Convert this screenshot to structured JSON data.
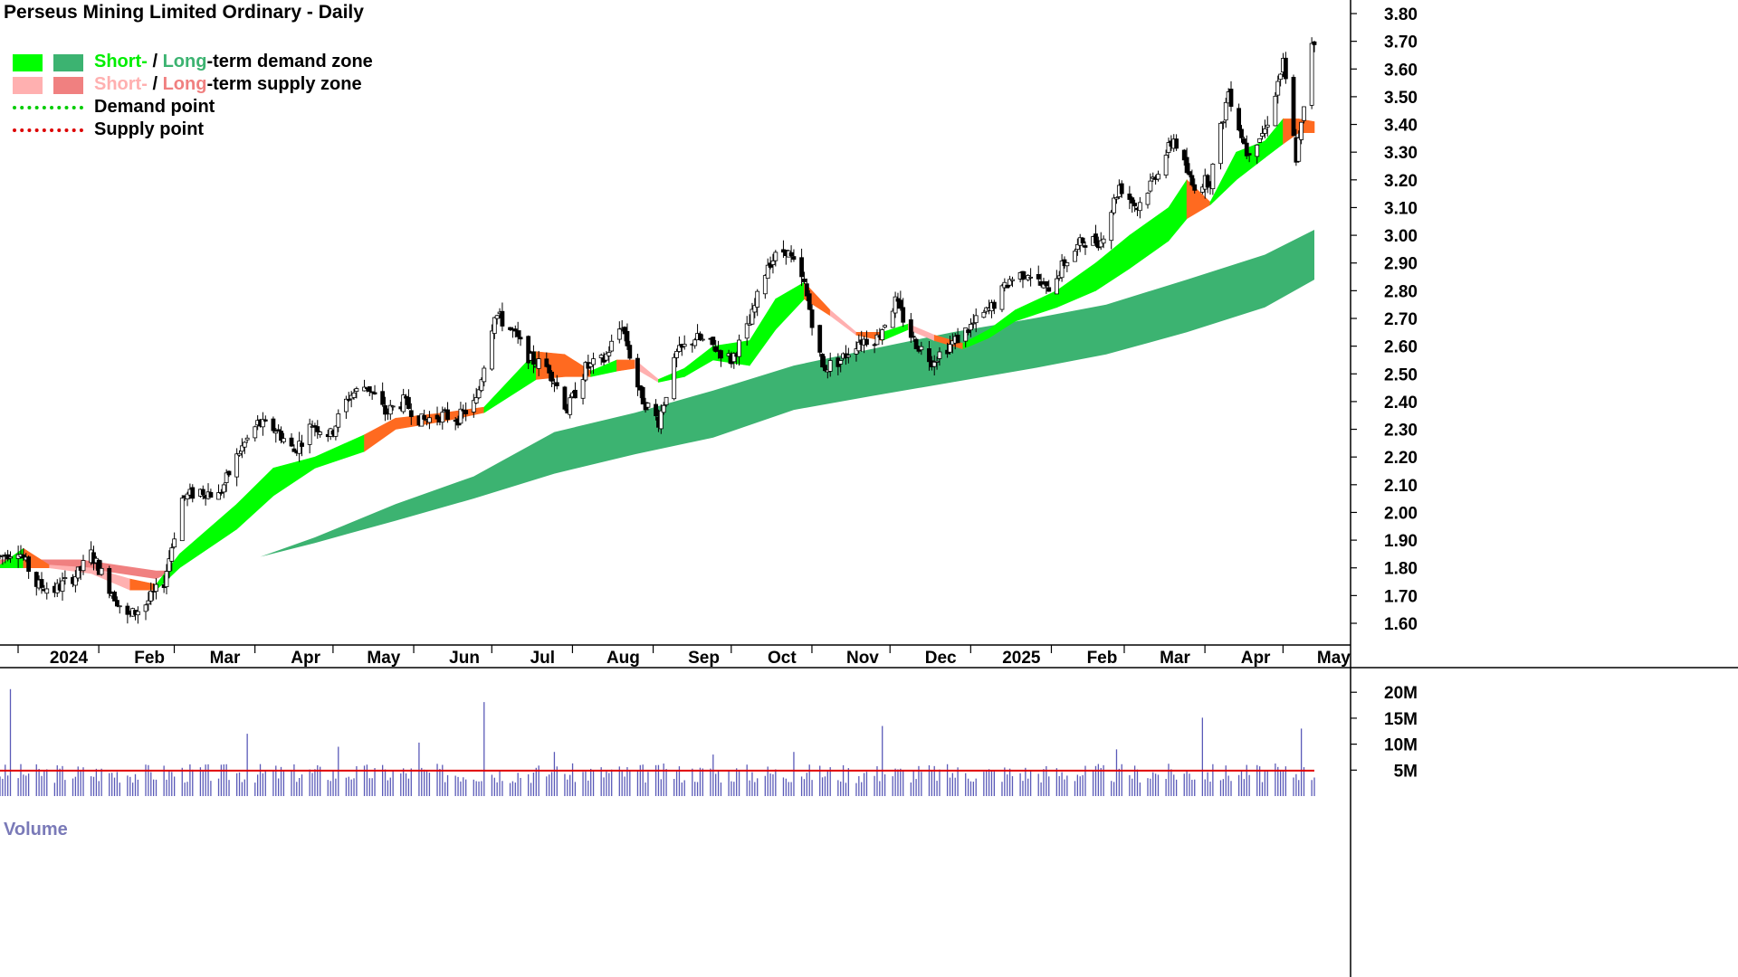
{
  "title": "Perseus Mining Limited Ordinary - Daily",
  "legend": {
    "demand_zone": {
      "short": "Short-",
      "sep": " / ",
      "long": "Long",
      "rest": "-term demand zone"
    },
    "supply_zone": {
      "short": "Short-",
      "sep": " / ",
      "long": "Long",
      "rest": "-term supply zone"
    },
    "demand_point": "Demand point",
    "supply_point": "Supply point"
  },
  "volume_label": "Volume",
  "colors": {
    "short_demand": "#00ff00",
    "long_demand": "#3cb371",
    "short_supply": "#ffb0b0",
    "long_supply": "#f08080",
    "crossover": "#ff6a20",
    "demand_point": "#00cc00",
    "supply_point": "#dd0000",
    "volume_bar": "#5a5ab8",
    "volume_avg": "#e00000"
  },
  "chart_data": {
    "type": "candlestick",
    "price_axis": {
      "ticks": [
        "1.60",
        "1.70",
        "1.80",
        "1.90",
        "2.00",
        "2.10",
        "2.20",
        "2.30",
        "2.40",
        "2.50",
        "2.60",
        "2.70",
        "2.80",
        "2.90",
        "3.00",
        "3.10",
        "3.20",
        "3.30",
        "3.40",
        "3.50",
        "3.60",
        "3.70",
        "3.80"
      ],
      "ylim": [
        1.53,
        3.83
      ]
    },
    "time_axis": {
      "labels": [
        "2024",
        "Feb",
        "Mar",
        "Apr",
        "May",
        "Jun",
        "Jul",
        "Aug",
        "Sep",
        "Oct",
        "Nov",
        "Dec",
        "2025",
        "Feb",
        "Mar",
        "Apr",
        "May"
      ],
      "range": [
        "2024-01-01",
        "2025-05-20"
      ]
    },
    "price_path": [
      [
        "2024-01-01",
        1.84
      ],
      [
        "2024-01-08",
        1.87
      ],
      [
        "2024-01-15",
        1.74
      ],
      [
        "2024-01-22",
        1.72
      ],
      [
        "2024-01-31",
        1.78
      ],
      [
        "2024-02-05",
        1.85
      ],
      [
        "2024-02-12",
        1.73
      ],
      [
        "2024-02-19",
        1.62
      ],
      [
        "2024-02-26",
        1.67
      ],
      [
        "2024-03-04",
        1.75
      ],
      [
        "2024-03-11",
        2.05
      ],
      [
        "2024-03-18",
        2.08
      ],
      [
        "2024-03-25",
        2.06
      ],
      [
        "2024-04-02",
        2.22
      ],
      [
        "2024-04-09",
        2.32
      ],
      [
        "2024-04-16",
        2.3
      ],
      [
        "2024-04-23",
        2.22
      ],
      [
        "2024-04-30",
        2.32
      ],
      [
        "2024-05-07",
        2.28
      ],
      [
        "2024-05-14",
        2.42
      ],
      [
        "2024-05-21",
        2.46
      ],
      [
        "2024-05-28",
        2.36
      ],
      [
        "2024-06-04",
        2.4
      ],
      [
        "2024-06-11",
        2.33
      ],
      [
        "2024-06-18",
        2.35
      ],
      [
        "2024-06-25",
        2.34
      ],
      [
        "2024-07-02",
        2.4
      ],
      [
        "2024-07-09",
        2.72
      ],
      [
        "2024-07-16",
        2.65
      ],
      [
        "2024-07-23",
        2.55
      ],
      [
        "2024-07-30",
        2.52
      ],
      [
        "2024-08-06",
        2.37
      ],
      [
        "2024-08-13",
        2.52
      ],
      [
        "2024-08-20",
        2.55
      ],
      [
        "2024-08-27",
        2.68
      ],
      [
        "2024-09-03",
        2.42
      ],
      [
        "2024-09-10",
        2.33
      ],
      [
        "2024-09-17",
        2.57
      ],
      [
        "2024-09-24",
        2.63
      ],
      [
        "2024-10-01",
        2.6
      ],
      [
        "2024-10-08",
        2.55
      ],
      [
        "2024-10-15",
        2.68
      ],
      [
        "2024-10-22",
        2.9
      ],
      [
        "2024-10-29",
        2.95
      ],
      [
        "2024-11-05",
        2.82
      ],
      [
        "2024-11-12",
        2.52
      ],
      [
        "2024-11-19",
        2.55
      ],
      [
        "2024-11-26",
        2.62
      ],
      [
        "2024-12-03",
        2.63
      ],
      [
        "2024-12-10",
        2.76
      ],
      [
        "2024-12-17",
        2.62
      ],
      [
        "2024-12-24",
        2.55
      ],
      [
        "2025-01-02",
        2.62
      ],
      [
        "2025-01-09",
        2.68
      ],
      [
        "2025-01-16",
        2.74
      ],
      [
        "2025-01-23",
        2.84
      ],
      [
        "2025-01-30",
        2.87
      ],
      [
        "2025-02-06",
        2.8
      ],
      [
        "2025-02-13",
        2.9
      ],
      [
        "2025-02-20",
        2.98
      ],
      [
        "2025-02-27",
        2.98
      ],
      [
        "2025-03-06",
        3.18
      ],
      [
        "2025-03-13",
        3.1
      ],
      [
        "2025-03-20",
        3.22
      ],
      [
        "2025-03-27",
        3.35
      ],
      [
        "2025-04-03",
        3.18
      ],
      [
        "2025-04-10",
        3.2
      ],
      [
        "2025-04-17",
        3.52
      ],
      [
        "2025-04-24",
        3.3
      ],
      [
        "2025-05-01",
        3.38
      ],
      [
        "2025-05-08",
        3.62
      ],
      [
        "2025-05-13",
        3.28
      ],
      [
        "2025-05-16",
        3.45
      ],
      [
        "2025-05-19",
        3.7
      ]
    ],
    "long_term_zone": [
      [
        "2024-04-10",
        1.84,
        1.84
      ],
      [
        "2024-05-01",
        1.91,
        1.89
      ],
      [
        "2024-06-01",
        2.03,
        1.97
      ],
      [
        "2024-07-01",
        2.13,
        2.05
      ],
      [
        "2024-08-01",
        2.29,
        2.14
      ],
      [
        "2024-09-01",
        2.36,
        2.21
      ],
      [
        "2024-10-01",
        2.44,
        2.27
      ],
      [
        "2024-11-01",
        2.53,
        2.37
      ],
      [
        "2024-12-01",
        2.59,
        2.42
      ],
      [
        "2025-01-01",
        2.65,
        2.47
      ],
      [
        "2025-02-01",
        2.7,
        2.52
      ],
      [
        "2025-03-01",
        2.75,
        2.57
      ],
      [
        "2025-04-01",
        2.84,
        2.65
      ],
      [
        "2025-05-01",
        2.93,
        2.74
      ],
      [
        "2025-05-20",
        3.02,
        2.84
      ]
    ],
    "long_term_supply": [
      [
        "2024-01-01",
        1.83,
        1.8
      ],
      [
        "2024-02-01",
        1.83,
        1.8
      ],
      [
        "2024-03-01",
        1.79,
        1.76
      ],
      [
        "2024-03-08",
        1.79,
        1.79
      ]
    ],
    "short_term_zone": [
      [
        "2024-01-01",
        1.81,
        1.8,
        "orange"
      ],
      [
        "2024-01-10",
        1.87,
        1.8,
        "green"
      ],
      [
        "2024-01-20",
        1.81,
        1.8,
        "orange"
      ],
      [
        "2024-02-05",
        1.8,
        1.78,
        "pink"
      ],
      [
        "2024-02-20",
        1.76,
        1.72,
        "pink"
      ],
      [
        "2024-03-01",
        1.74,
        1.72,
        "orange"
      ],
      [
        "2024-03-10",
        1.85,
        1.8,
        "green"
      ],
      [
        "2024-04-01",
        2.03,
        1.94,
        "green"
      ],
      [
        "2024-04-15",
        2.16,
        2.06,
        "green"
      ],
      [
        "2024-05-01",
        2.2,
        2.16,
        "green"
      ],
      [
        "2024-05-20",
        2.28,
        2.22,
        "green"
      ],
      [
        "2024-06-01",
        2.34,
        2.3,
        "orange"
      ],
      [
        "2024-06-20",
        2.36,
        2.33,
        "orange"
      ],
      [
        "2024-07-05",
        2.38,
        2.36,
        "orange"
      ],
      [
        "2024-07-25",
        2.58,
        2.48,
        "green"
      ],
      [
        "2024-08-05",
        2.57,
        2.49,
        "orange"
      ],
      [
        "2024-08-15",
        2.51,
        2.49,
        "orange"
      ],
      [
        "2024-08-25",
        2.55,
        2.51,
        "green"
      ],
      [
        "2024-09-01",
        2.55,
        2.52,
        "orange"
      ],
      [
        "2024-09-10",
        2.48,
        2.47,
        "pink"
      ],
      [
        "2024-09-20",
        2.52,
        2.49,
        "green"
      ],
      [
        "2024-10-01",
        2.6,
        2.55,
        "green"
      ],
      [
        "2024-10-15",
        2.62,
        2.53,
        "green"
      ],
      [
        "2024-10-25",
        2.77,
        2.66,
        "green"
      ],
      [
        "2024-11-05",
        2.83,
        2.77,
        "green"
      ],
      [
        "2024-11-15",
        2.73,
        2.71,
        "orange"
      ],
      [
        "2024-11-25",
        2.65,
        2.64,
        "pink"
      ],
      [
        "2024-12-05",
        2.65,
        2.62,
        "orange"
      ],
      [
        "2024-12-15",
        2.68,
        2.66,
        "green"
      ],
      [
        "2024-12-25",
        2.64,
        2.62,
        "pink"
      ],
      [
        "2025-01-05",
        2.61,
        2.59,
        "orange"
      ],
      [
        "2025-01-15",
        2.66,
        2.63,
        "green"
      ],
      [
        "2025-01-25",
        2.73,
        2.69,
        "green"
      ],
      [
        "2025-02-10",
        2.8,
        2.74,
        "green"
      ],
      [
        "2025-02-25",
        2.9,
        2.8,
        "green"
      ],
      [
        "2025-03-10",
        3.0,
        2.88,
        "green"
      ],
      [
        "2025-03-25",
        3.1,
        2.98,
        "green"
      ],
      [
        "2025-04-01",
        3.2,
        3.06,
        "green"
      ],
      [
        "2025-04-10",
        3.12,
        3.11,
        "orange"
      ],
      [
        "2025-04-20",
        3.3,
        3.2,
        "green"
      ],
      [
        "2025-05-01",
        3.34,
        3.28,
        "green"
      ],
      [
        "2025-05-08",
        3.42,
        3.33,
        "green"
      ],
      [
        "2025-05-14",
        3.42,
        3.37,
        "orange"
      ],
      [
        "2025-05-20",
        3.41,
        3.37,
        "orange"
      ]
    ],
    "volume_axis": {
      "ticks": [
        "5M",
        "10M",
        "15M",
        "20M"
      ],
      "ylim": [
        0,
        23
      ]
    },
    "volume_average": 4.9,
    "volume_spikes_m": [
      [
        "2024-01-05",
        20.6
      ],
      [
        "2024-04-05",
        12.0
      ],
      [
        "2024-04-20",
        6.5
      ],
      [
        "2024-05-10",
        9.5
      ],
      [
        "2024-05-25",
        8.0
      ],
      [
        "2024-06-10",
        10.3
      ],
      [
        "2024-07-05",
        18.1
      ],
      [
        "2024-08-01",
        8.5
      ],
      [
        "2024-09-01",
        9.0
      ],
      [
        "2024-10-01",
        8.0
      ],
      [
        "2024-11-01",
        8.5
      ],
      [
        "2024-12-05",
        13.5
      ],
      [
        "2025-03-05",
        9.0
      ],
      [
        "2025-04-07",
        15.1
      ],
      [
        "2025-05-15",
        13.0
      ]
    ]
  }
}
